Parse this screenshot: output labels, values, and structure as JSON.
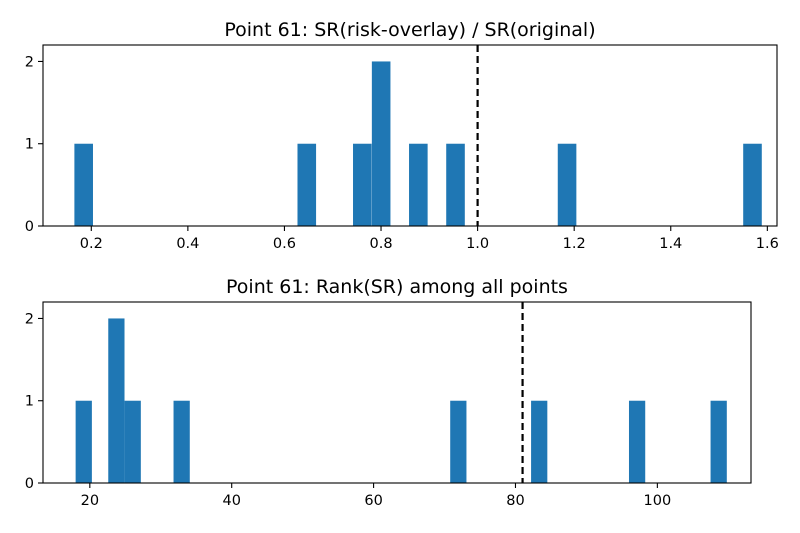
{
  "colors": {
    "bar": "#1f77b4",
    "ref_line": "#000000"
  },
  "chart_data": [
    {
      "type": "bar",
      "title": "Point 61: SR(risk-overlay) / SR(original)",
      "xlabel": "",
      "ylabel": "",
      "xlim": [
        0.1,
        1.62
      ],
      "ylim": [
        0,
        2.2
      ],
      "xticks": [
        0.2,
        0.4,
        0.6,
        0.8,
        1.0,
        1.2,
        1.4,
        1.6
      ],
      "xtick_labels": [
        "0.2",
        "0.4",
        "0.6",
        "0.8",
        "1.0",
        "1.2",
        "1.4",
        "1.6"
      ],
      "yticks": [
        0,
        1,
        2
      ],
      "ytick_labels": [
        "0",
        "1",
        "2"
      ],
      "bin_width": 0.0385,
      "bins": [
        {
          "start": 0.165,
          "count": 1
        },
        {
          "start": 0.627,
          "count": 1
        },
        {
          "start": 0.742,
          "count": 1
        },
        {
          "start": 0.781,
          "count": 2
        },
        {
          "start": 0.858,
          "count": 1
        },
        {
          "start": 0.935,
          "count": 1
        },
        {
          "start": 1.166,
          "count": 1
        },
        {
          "start": 1.55,
          "count": 1
        }
      ],
      "reference_line": {
        "x": 1.0,
        "style": "dashed"
      },
      "grid": false,
      "legend": "none"
    },
    {
      "type": "bar",
      "title": "Point 61: Rank(SR) among all points",
      "xlabel": "",
      "ylabel": "",
      "xlim": [
        13.4,
        113.2
      ],
      "ylim": [
        0,
        2.2
      ],
      "xticks": [
        20,
        40,
        60,
        80,
        100
      ],
      "xtick_labels": [
        "20",
        "40",
        "60",
        "80",
        "100"
      ],
      "yticks": [
        0,
        1,
        2
      ],
      "ytick_labels": [
        "0",
        "1",
        "2"
      ],
      "bin_width": 2.29,
      "bins": [
        {
          "start": 18.0,
          "count": 1
        },
        {
          "start": 22.6,
          "count": 2
        },
        {
          "start": 24.9,
          "count": 1
        },
        {
          "start": 31.8,
          "count": 1
        },
        {
          "start": 70.8,
          "count": 1
        },
        {
          "start": 82.2,
          "count": 1
        },
        {
          "start": 96.0,
          "count": 1
        },
        {
          "start": 107.5,
          "count": 1
        }
      ],
      "reference_line": {
        "x": 81.0,
        "style": "dashed"
      },
      "grid": false,
      "legend": "none"
    }
  ]
}
